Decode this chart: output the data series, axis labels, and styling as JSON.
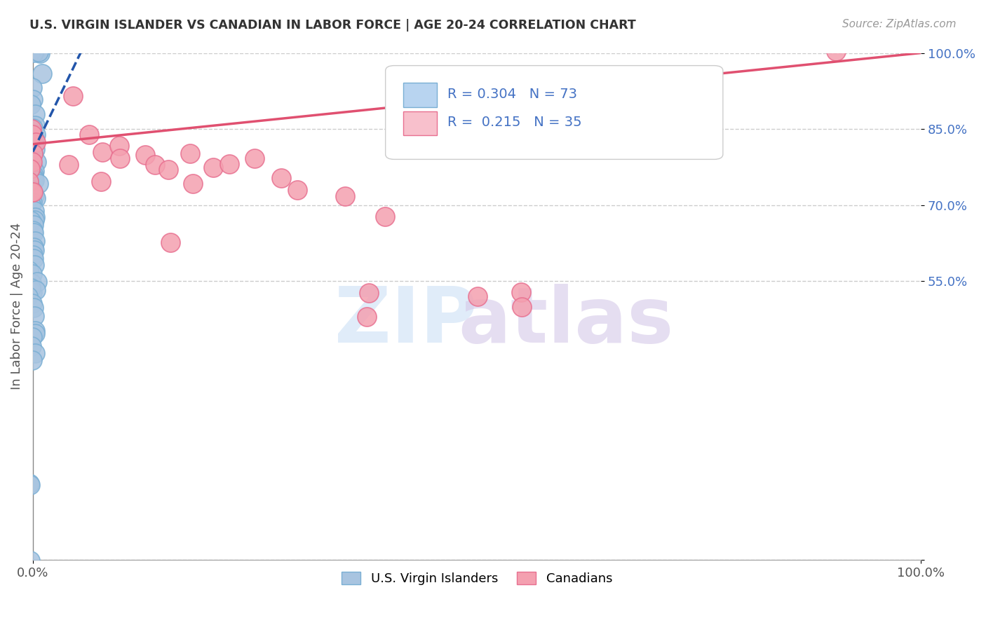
{
  "title": "U.S. VIRGIN ISLANDER VS CANADIAN IN LABOR FORCE | AGE 20-24 CORRELATION CHART",
  "source": "Source: ZipAtlas.com",
  "ylabel": "In Labor Force | Age 20-24",
  "xlim": [
    0.0,
    1.0
  ],
  "ylim": [
    0.0,
    1.0
  ],
  "xticks": [
    0.0,
    1.0
  ],
  "xticklabels": [
    "0.0%",
    "100.0%"
  ],
  "ytick_positions": [
    0.0,
    0.55,
    0.7,
    0.85,
    1.0
  ],
  "ytick_labels": [
    "",
    "55.0%",
    "70.0%",
    "85.0%",
    "100.0%"
  ],
  "blue_R": 0.304,
  "blue_N": 73,
  "pink_R": 0.215,
  "pink_N": 35,
  "blue_color": "#a8c4e0",
  "pink_color": "#f4a0b0",
  "blue_edge": "#7aafd4",
  "pink_edge": "#e87090",
  "blue_line_color": "#2255aa",
  "blue_line_x0": 0.0,
  "blue_line_y0": 0.805,
  "blue_line_x1": 0.055,
  "blue_line_y1": 1.005,
  "pink_line_color": "#e05070",
  "pink_line_x0": 0.0,
  "pink_line_y0": 0.82,
  "pink_line_x1": 1.0,
  "pink_line_y1": 1.0,
  "legend_blue_box": "#b8d4f0",
  "legend_pink_box": "#f8c0cc",
  "blue_scatter_x": [
    0.0,
    0.0,
    0.0,
    0.005,
    0.007,
    0.01,
    0.01,
    0.0,
    0.0,
    0.0,
    0.0,
    0.0,
    0.0,
    0.0,
    0.0,
    0.0,
    0.0,
    0.0,
    0.0,
    0.0,
    0.0,
    0.0,
    0.0,
    0.0,
    0.0,
    0.0,
    0.0,
    0.0,
    0.0,
    0.0,
    0.0,
    0.0,
    0.0,
    0.0,
    0.0,
    0.0,
    0.0,
    0.0,
    0.0,
    0.0,
    0.0,
    0.0,
    0.0,
    0.0,
    0.0,
    0.0,
    0.0,
    0.0,
    0.0,
    0.0,
    0.0,
    0.0,
    0.0,
    0.0,
    0.0,
    0.0,
    0.0,
    0.0,
    0.0,
    0.0,
    0.0,
    0.0,
    0.0,
    0.0,
    0.0,
    0.0,
    0.0,
    0.0,
    0.0,
    0.0,
    0.0,
    0.0,
    0.0
  ],
  "blue_scatter_y": [
    1.0,
    1.0,
    1.0,
    1.0,
    1.0,
    1.0,
    0.96,
    0.93,
    0.91,
    0.9,
    0.88,
    0.86,
    0.85,
    0.84,
    0.83,
    0.82,
    0.82,
    0.81,
    0.81,
    0.8,
    0.8,
    0.8,
    0.79,
    0.78,
    0.78,
    0.77,
    0.77,
    0.76,
    0.75,
    0.75,
    0.74,
    0.73,
    0.73,
    0.72,
    0.72,
    0.71,
    0.71,
    0.7,
    0.7,
    0.69,
    0.68,
    0.67,
    0.67,
    0.66,
    0.65,
    0.64,
    0.63,
    0.62,
    0.61,
    0.6,
    0.59,
    0.58,
    0.57,
    0.56,
    0.55,
    0.54,
    0.53,
    0.55,
    0.54,
    0.53,
    0.52,
    0.51,
    0.5,
    0.48,
    0.45,
    0.44,
    0.43,
    0.42,
    0.41,
    0.4,
    0.15,
    0.15,
    0.0
  ],
  "pink_scatter_x": [
    0.0,
    0.0,
    0.0,
    0.0,
    0.0,
    0.0,
    0.0,
    0.0,
    0.0,
    0.04,
    0.04,
    0.06,
    0.08,
    0.08,
    0.1,
    0.1,
    0.12,
    0.14,
    0.15,
    0.18,
    0.2,
    0.22,
    0.25,
    0.28,
    0.3,
    0.35,
    0.38,
    0.4,
    0.38,
    0.18,
    0.15,
    0.5,
    0.55,
    0.55,
    0.9
  ],
  "pink_scatter_y": [
    0.85,
    0.84,
    0.82,
    0.8,
    0.78,
    0.77,
    0.75,
    0.73,
    0.72,
    0.91,
    0.78,
    0.84,
    0.8,
    0.75,
    0.82,
    0.79,
    0.8,
    0.78,
    0.77,
    0.8,
    0.77,
    0.78,
    0.79,
    0.76,
    0.73,
    0.72,
    0.53,
    0.68,
    0.48,
    0.74,
    0.63,
    0.52,
    0.53,
    0.5,
    1.0
  ]
}
